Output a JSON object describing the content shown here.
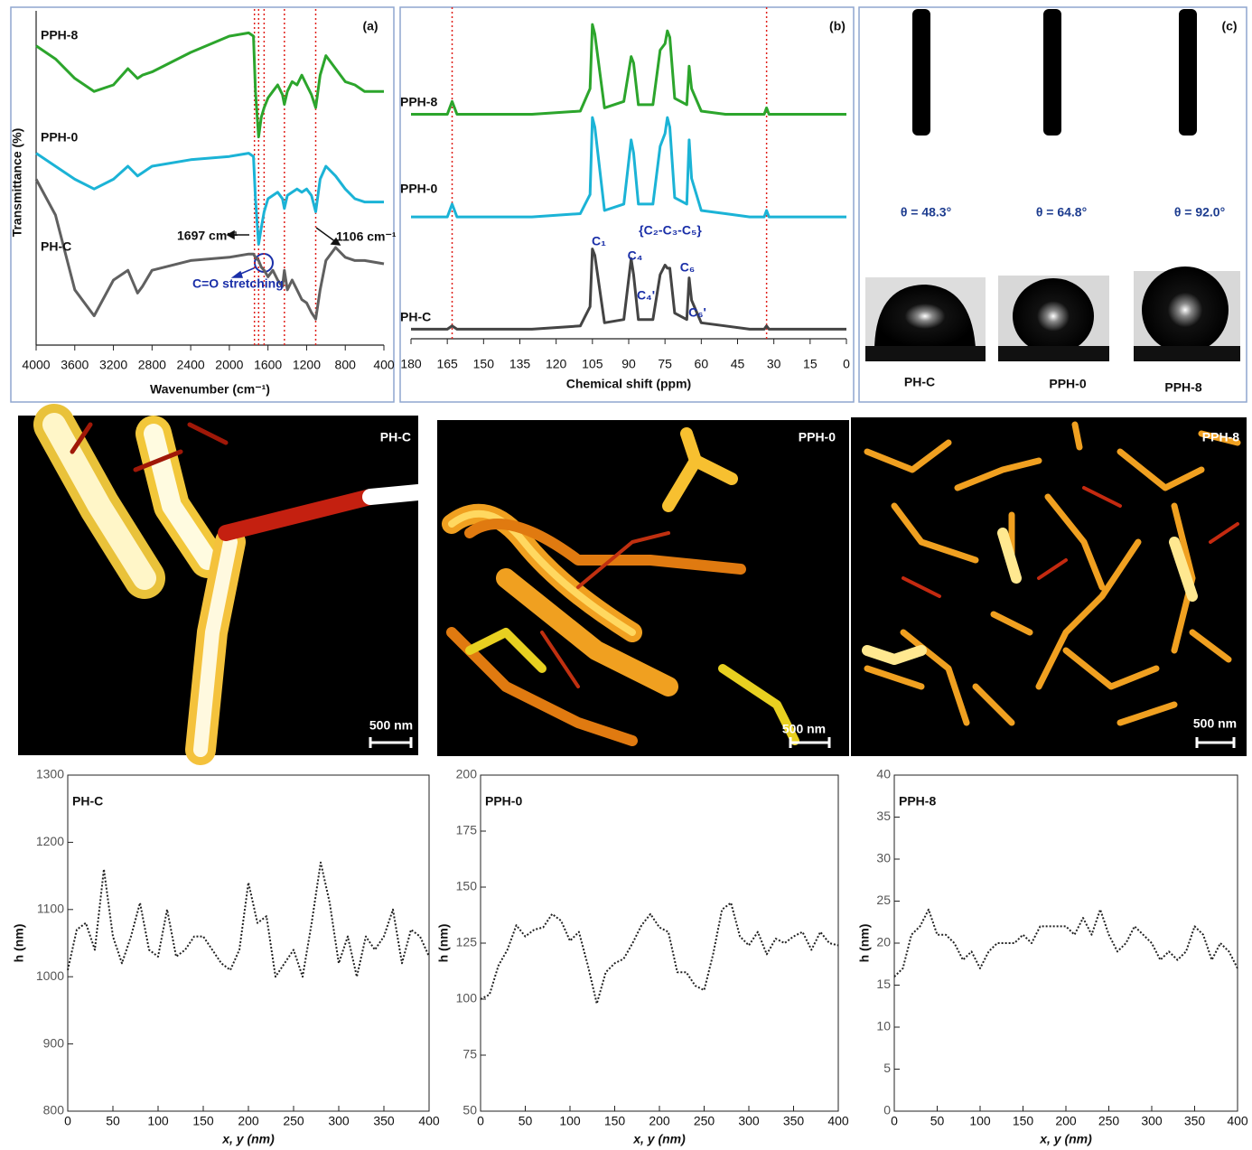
{
  "chart_data": [
    {
      "type": "line",
      "panel_label": "(a)",
      "xlabel": "Wavenumber (cm⁻¹)",
      "ylabel": "Transmittance (%)",
      "x": [
        4000,
        3800,
        3600,
        3400,
        3200,
        3050,
        2950,
        2900,
        2800,
        2400,
        2000,
        1800,
        1750,
        1730,
        1697,
        1670,
        1640,
        1600,
        1550,
        1500,
        1450,
        1430,
        1400,
        1350,
        1300,
        1250,
        1200,
        1150,
        1106,
        1060,
        1000,
        900,
        800,
        700,
        600,
        400
      ],
      "series": [
        {
          "name": "PPH-8",
          "color": "#2ca52c",
          "values": [
            92,
            88,
            82,
            78,
            80,
            85,
            82,
            83,
            84,
            90,
            95,
            96,
            95,
            78,
            64,
            70,
            73,
            76,
            78,
            80,
            77,
            74,
            78,
            81,
            80,
            83,
            80,
            77,
            73,
            83,
            89,
            85,
            81,
            80,
            78,
            78
          ]
        },
        {
          "name": "PPH-0",
          "color": "#1bb3d6",
          "values": [
            59,
            55,
            51,
            48,
            51,
            55,
            52,
            53,
            55,
            57,
            58,
            59,
            58,
            45,
            31,
            36,
            41,
            45,
            46,
            47,
            45,
            42,
            46,
            47,
            48,
            47,
            48,
            46,
            41,
            51,
            55,
            52,
            48,
            45,
            44,
            44
          ]
        },
        {
          "name": "PH-C",
          "color": "#606060",
          "values": [
            51,
            40,
            17,
            9,
            20,
            23,
            16,
            18,
            23,
            26,
            27,
            28,
            28,
            27,
            26,
            24,
            23,
            21,
            23,
            20,
            18,
            23,
            17,
            20,
            17,
            14,
            13,
            10,
            8,
            17,
            26,
            30,
            27,
            26,
            26,
            25
          ]
        }
      ],
      "xlim": [
        4000,
        400
      ],
      "xticks": [
        4000,
        3600,
        3200,
        2800,
        2400,
        2000,
        1600,
        1200,
        800,
        400
      ],
      "ylim": [
        0,
        100
      ],
      "vlines": [
        1740,
        1697,
        1640,
        1430,
        1106
      ],
      "annotations": [
        "1697 cm⁻¹",
        "1106 cm⁻¹",
        "C=O stretching"
      ]
    },
    {
      "type": "line",
      "panel_label": "(b)",
      "xlabel": "Chemical shift (ppm)",
      "x": [
        180,
        170,
        165,
        163,
        161,
        150,
        130,
        110,
        106,
        105,
        104,
        100,
        92,
        89,
        88,
        86,
        80,
        77,
        75,
        74,
        73,
        71,
        66,
        65,
        64,
        60,
        50,
        40,
        34,
        33,
        32,
        20,
        10,
        0
      ],
      "series": [
        {
          "name": "PPH-8",
          "color": "#2ca52c",
          "values": [
            70,
            70,
            70,
            74,
            70,
            70,
            70,
            71,
            78,
            98,
            95,
            72,
            74,
            88,
            86,
            73,
            73,
            90,
            92,
            96,
            94,
            75,
            73,
            85,
            78,
            71,
            70,
            70,
            70,
            72,
            70,
            70,
            70,
            70
          ]
        },
        {
          "name": "PPH-0",
          "color": "#1bb3d6",
          "values": [
            38,
            38,
            38,
            42,
            38,
            38,
            38,
            39,
            45,
            69,
            66,
            40,
            42,
            62,
            58,
            42,
            42,
            60,
            64,
            69,
            66,
            44,
            42,
            62,
            50,
            40,
            39,
            38,
            38,
            40,
            38,
            38,
            38,
            38
          ]
        },
        {
          "name": "PH-C",
          "color": "#444444",
          "values": [
            3,
            3,
            3,
            4,
            3,
            3,
            3,
            4,
            10,
            28,
            26,
            5,
            6,
            25,
            20,
            6,
            6,
            20,
            23,
            22,
            22,
            8,
            6,
            19,
            12,
            5,
            4,
            3,
            3,
            4,
            3,
            3,
            3,
            3
          ]
        }
      ],
      "xlim": [
        180,
        0
      ],
      "xticks": [
        180,
        165,
        150,
        135,
        120,
        105,
        90,
        75,
        60,
        45,
        30,
        15,
        0
      ],
      "ylim": [
        0,
        100
      ],
      "vlines": [
        163,
        33
      ],
      "annotations": [
        "C₁",
        "C₄",
        "C₄'",
        "{C₂-C₃-C₅}",
        "C₆",
        "C₆'"
      ]
    },
    {
      "type": "line",
      "title": "PH-C",
      "xlabel": "x, y (nm)",
      "ylabel": "h (nm)",
      "color": "#222222",
      "line_style": "dotted",
      "x": [
        0,
        10,
        20,
        30,
        40,
        50,
        60,
        70,
        80,
        90,
        100,
        110,
        120,
        130,
        140,
        150,
        160,
        170,
        180,
        190,
        200,
        210,
        220,
        230,
        240,
        250,
        260,
        270,
        280,
        290,
        300,
        310,
        320,
        330,
        340,
        350,
        360,
        370,
        380,
        390,
        400
      ],
      "values": [
        1010,
        1070,
        1080,
        1040,
        1160,
        1060,
        1020,
        1060,
        1110,
        1040,
        1030,
        1100,
        1030,
        1040,
        1060,
        1060,
        1040,
        1020,
        1010,
        1040,
        1140,
        1080,
        1090,
        1000,
        1020,
        1040,
        1000,
        1080,
        1170,
        1110,
        1020,
        1060,
        1000,
        1060,
        1040,
        1060,
        1100,
        1020,
        1070,
        1060,
        1030
      ],
      "xlim": [
        0,
        400
      ],
      "xticks": [
        0,
        50,
        100,
        150,
        200,
        250,
        300,
        350,
        400
      ],
      "ylim": [
        800,
        1300
      ],
      "yticks": [
        800,
        900,
        1000,
        1100,
        1200,
        1300
      ]
    },
    {
      "type": "line",
      "title": "PPH-0",
      "xlabel": "x, y (nm)",
      "ylabel": "h (nm)",
      "color": "#222222",
      "line_style": "dotted",
      "x": [
        0,
        10,
        20,
        30,
        40,
        50,
        60,
        70,
        80,
        90,
        100,
        110,
        120,
        130,
        140,
        150,
        160,
        170,
        180,
        190,
        200,
        210,
        220,
        230,
        240,
        250,
        260,
        270,
        280,
        290,
        300,
        310,
        320,
        330,
        340,
        350,
        360,
        370,
        380,
        390,
        400
      ],
      "values": [
        100,
        102,
        115,
        122,
        133,
        128,
        131,
        132,
        138,
        135,
        126,
        130,
        115,
        98,
        112,
        116,
        118,
        125,
        133,
        138,
        132,
        130,
        112,
        112,
        106,
        104,
        120,
        140,
        143,
        128,
        124,
        130,
        120,
        127,
        125,
        128,
        130,
        122,
        130,
        125,
        124
      ],
      "xlim": [
        0,
        400
      ],
      "xticks": [
        0,
        50,
        100,
        150,
        200,
        250,
        300,
        350,
        400
      ],
      "ylim": [
        50,
        200
      ],
      "yticks": [
        50,
        75,
        100,
        125,
        150,
        175,
        200
      ]
    },
    {
      "type": "line",
      "title": "PPH-8",
      "xlabel": "x, y (nm)",
      "ylabel": "h (nm)",
      "color": "#222222",
      "line_style": "dotted",
      "x": [
        0,
        10,
        20,
        30,
        40,
        50,
        60,
        70,
        80,
        90,
        100,
        110,
        120,
        130,
        140,
        150,
        160,
        170,
        180,
        190,
        200,
        210,
        220,
        230,
        240,
        250,
        260,
        270,
        280,
        290,
        300,
        310,
        320,
        330,
        340,
        350,
        360,
        370,
        380,
        390,
        400
      ],
      "values": [
        16,
        17,
        21,
        22,
        24,
        21,
        21,
        20,
        18,
        19,
        17,
        19,
        20,
        20,
        20,
        21,
        20,
        22,
        22,
        22,
        22,
        21,
        23,
        21,
        24,
        21,
        19,
        20,
        22,
        21,
        20,
        18,
        19,
        18,
        19,
        22,
        21,
        18,
        20,
        19,
        17
      ],
      "xlim": [
        0,
        400
      ],
      "xticks": [
        0,
        50,
        100,
        150,
        200,
        250,
        300,
        350,
        400
      ],
      "ylim": [
        0,
        40
      ],
      "yticks": [
        0,
        5,
        10,
        15,
        20,
        25,
        30,
        35,
        40
      ]
    }
  ],
  "contact_angle": {
    "label": "(c)",
    "samples": [
      "PH-C",
      "PPH-0",
      "PPH-8"
    ],
    "angles": [
      "θ = 48.3°",
      "θ = 64.8°",
      "θ = 92.0°"
    ]
  },
  "afm_images": [
    {
      "label": "PH-C",
      "scale_bar": "500 nm"
    },
    {
      "label": "PPH-0",
      "scale_bar": "500 nm"
    },
    {
      "label": "PPH-8",
      "scale_bar": "500 nm"
    }
  ]
}
